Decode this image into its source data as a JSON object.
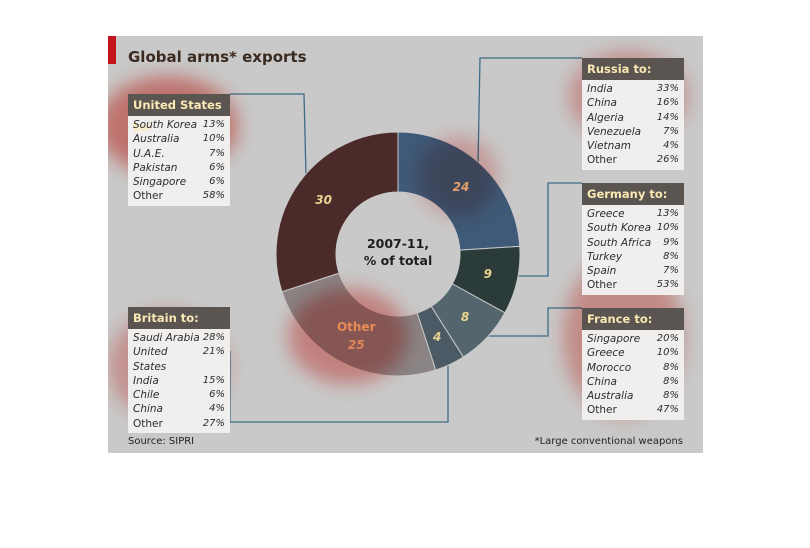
{
  "title": "Global arms* exports",
  "source": "Source: SIPRI",
  "footnote": "*Large conventional weapons",
  "center_label_1": "2007-11,",
  "center_label_2": "% of total",
  "colors": {
    "accent": "#c4141c",
    "box_header": "#5b5551",
    "header_text": "#fbe9b5",
    "background": "#c9c9c9"
  },
  "chart_data": {
    "type": "pie",
    "title": "Global arms* exports",
    "subtitle": "2007-11, % of total",
    "slices": [
      {
        "label": "",
        "value": 24,
        "color": "#3e5a78"
      },
      {
        "label": "",
        "value": 9,
        "color": "#2b3b3a"
      },
      {
        "label": "",
        "value": 8,
        "color": "#54656e"
      },
      {
        "label": "",
        "value": 4,
        "color": "#4b5a64"
      },
      {
        "label": "Other",
        "value": 25,
        "color": "#8b8585"
      },
      {
        "label": "",
        "value": 30,
        "color": "#4a2b2a"
      }
    ],
    "breakdowns": [
      {
        "header": "Russia to:",
        "rows": [
          {
            "country": "India",
            "value": "33%"
          },
          {
            "country": "China",
            "value": "16%"
          },
          {
            "country": "Algeria",
            "value": "14%"
          },
          {
            "country": "Venezuela",
            "value": "7%"
          },
          {
            "country": "Vietnam",
            "value": "4%"
          },
          {
            "country": "Other",
            "value": "26%"
          }
        ]
      },
      {
        "header": "Germany to:",
        "rows": [
          {
            "country": "Greece",
            "value": "13%"
          },
          {
            "country": "South Korea",
            "value": "10%"
          },
          {
            "country": "South Africa",
            "value": "9%"
          },
          {
            "country": "Turkey",
            "value": "8%"
          },
          {
            "country": "Spain",
            "value": "7%"
          },
          {
            "country": "Other",
            "value": "53%"
          }
        ]
      },
      {
        "header": "France to:",
        "rows": [
          {
            "country": "Singapore",
            "value": "20%"
          },
          {
            "country": "Greece",
            "value": "10%"
          },
          {
            "country": "Morocco",
            "value": "8%"
          },
          {
            "country": "China",
            "value": "8%"
          },
          {
            "country": "Australia",
            "value": "8%"
          },
          {
            "country": "Other",
            "value": "47%"
          }
        ]
      },
      {
        "header": "United States to:",
        "rows": [
          {
            "country": "South Korea",
            "value": "13%"
          },
          {
            "country": "Australia",
            "value": "10%"
          },
          {
            "country": "U.A.E.",
            "value": "7%"
          },
          {
            "country": "Pakistan",
            "value": "6%"
          },
          {
            "country": "Singapore",
            "value": "6%"
          },
          {
            "country": "Other",
            "value": "58%"
          }
        ]
      },
      {
        "header": "Britain to:",
        "rows": [
          {
            "country": "Saudi Arabia",
            "value": "28%"
          },
          {
            "country": "United States",
            "value": "21%"
          },
          {
            "country": "India",
            "value": "15%"
          },
          {
            "country": "Chile",
            "value": "6%"
          },
          {
            "country": "China",
            "value": "4%"
          },
          {
            "country": "Other",
            "value": "27%"
          }
        ]
      }
    ]
  }
}
